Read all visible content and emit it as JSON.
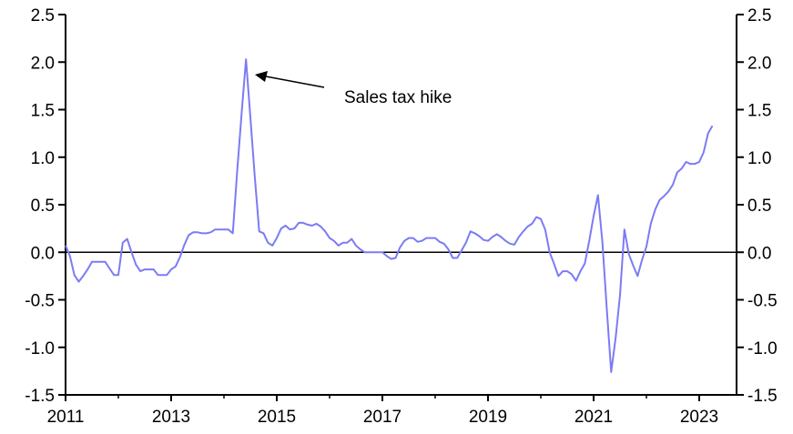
{
  "chart_data": {
    "type": "line",
    "title": "",
    "xlabel": "",
    "ylabel": "",
    "ylim": [
      -1.5,
      2.5
    ],
    "y_ticks": [
      "-1.5",
      "-1.0",
      "-0.5",
      "0.0",
      "0.5",
      "1.0",
      "1.5",
      "2.0",
      "2.5"
    ],
    "y_tick_values": [
      -1.5,
      -1.0,
      -0.5,
      0.0,
      0.5,
      1.0,
      1.5,
      2.0,
      2.5
    ],
    "x_ticks": [
      "2011",
      "2013",
      "2015",
      "2017",
      "2019",
      "2021",
      "2023"
    ],
    "xlim": [
      "2011-01",
      "2023-08"
    ],
    "frequency": "monthly",
    "start": "2011-01",
    "grid": false,
    "dual_y_axis_mirrored": true,
    "zero_line": true,
    "line_color": "#7b7bf5",
    "annotation": {
      "text": "Sales tax hike",
      "points_to": "2014-06"
    },
    "series": [
      {
        "values": [
          0.07,
          -0.04,
          -0.24,
          -0.31,
          -0.25,
          -0.18,
          -0.1,
          -0.1,
          -0.1,
          -0.1,
          -0.17,
          -0.24,
          -0.24,
          0.1,
          0.14,
          0.0,
          -0.13,
          -0.2,
          -0.18,
          -0.18,
          -0.18,
          -0.24,
          -0.24,
          -0.24,
          -0.18,
          -0.15,
          -0.05,
          0.08,
          0.18,
          0.21,
          0.21,
          0.2,
          0.2,
          0.21,
          0.24,
          0.24,
          0.24,
          0.24,
          0.2,
          0.85,
          1.45,
          2.03,
          1.42,
          0.8,
          0.22,
          0.2,
          0.1,
          0.07,
          0.15,
          0.25,
          0.28,
          0.24,
          0.25,
          0.31,
          0.31,
          0.29,
          0.28,
          0.3,
          0.27,
          0.22,
          0.15,
          0.12,
          0.07,
          0.1,
          0.1,
          0.14,
          0.07,
          0.03,
          0.0,
          0.0,
          0.0,
          0.0,
          0.0,
          -0.04,
          -0.07,
          -0.06,
          0.05,
          0.12,
          0.15,
          0.15,
          0.11,
          0.12,
          0.15,
          0.15,
          0.15,
          0.11,
          0.09,
          0.03,
          -0.06,
          -0.06,
          0.02,
          0.1,
          0.22,
          0.2,
          0.17,
          0.13,
          0.12,
          0.16,
          0.19,
          0.16,
          0.12,
          0.09,
          0.08,
          0.16,
          0.22,
          0.27,
          0.3,
          0.37,
          0.35,
          0.24,
          0.0,
          -0.12,
          -0.25,
          -0.2,
          -0.2,
          -0.23,
          -0.3,
          -0.2,
          -0.12,
          0.12,
          0.38,
          0.6,
          0.1,
          -0.6,
          -1.26,
          -0.9,
          -0.45,
          0.24,
          -0.02,
          -0.14,
          -0.25,
          -0.08,
          0.06,
          0.3,
          0.45,
          0.55,
          0.59,
          0.64,
          0.71,
          0.84,
          0.88,
          0.95,
          0.93,
          0.93,
          0.95,
          1.05,
          1.25,
          1.33
        ]
      }
    ]
  }
}
